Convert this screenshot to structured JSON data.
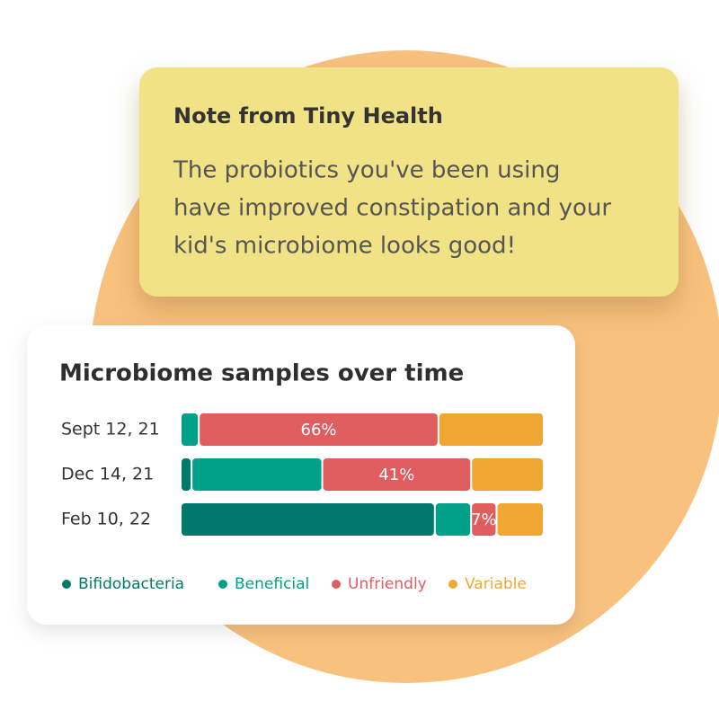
{
  "note": {
    "title": "Note from Tiny Health",
    "body": [
      "The probiotics you've been using",
      "have improved constipation and your",
      "kid's microbiome looks good!"
    ]
  },
  "chart_data": {
    "type": "stacked-barh",
    "title": "Microbiome samples over time",
    "categories": [
      "Sept 12, 21",
      "Dec 14, 21",
      "Feb 10, 22"
    ],
    "series": [
      {
        "name": "Bifidobacteria",
        "color": "#00796a",
        "values": [
          0,
          3,
          70
        ]
      },
      {
        "name": "Beneficial",
        "color": "#00a089",
        "values": [
          5,
          36,
          10
        ]
      },
      {
        "name": "Unfriendly",
        "color": "#e05d5f",
        "values": [
          66,
          41,
          7
        ],
        "value_labels": [
          "66%",
          "41%",
          "7%"
        ]
      },
      {
        "name": "Variable",
        "color": "#f0a832",
        "values": [
          29,
          20,
          13
        ]
      }
    ],
    "legend": "bottom"
  }
}
